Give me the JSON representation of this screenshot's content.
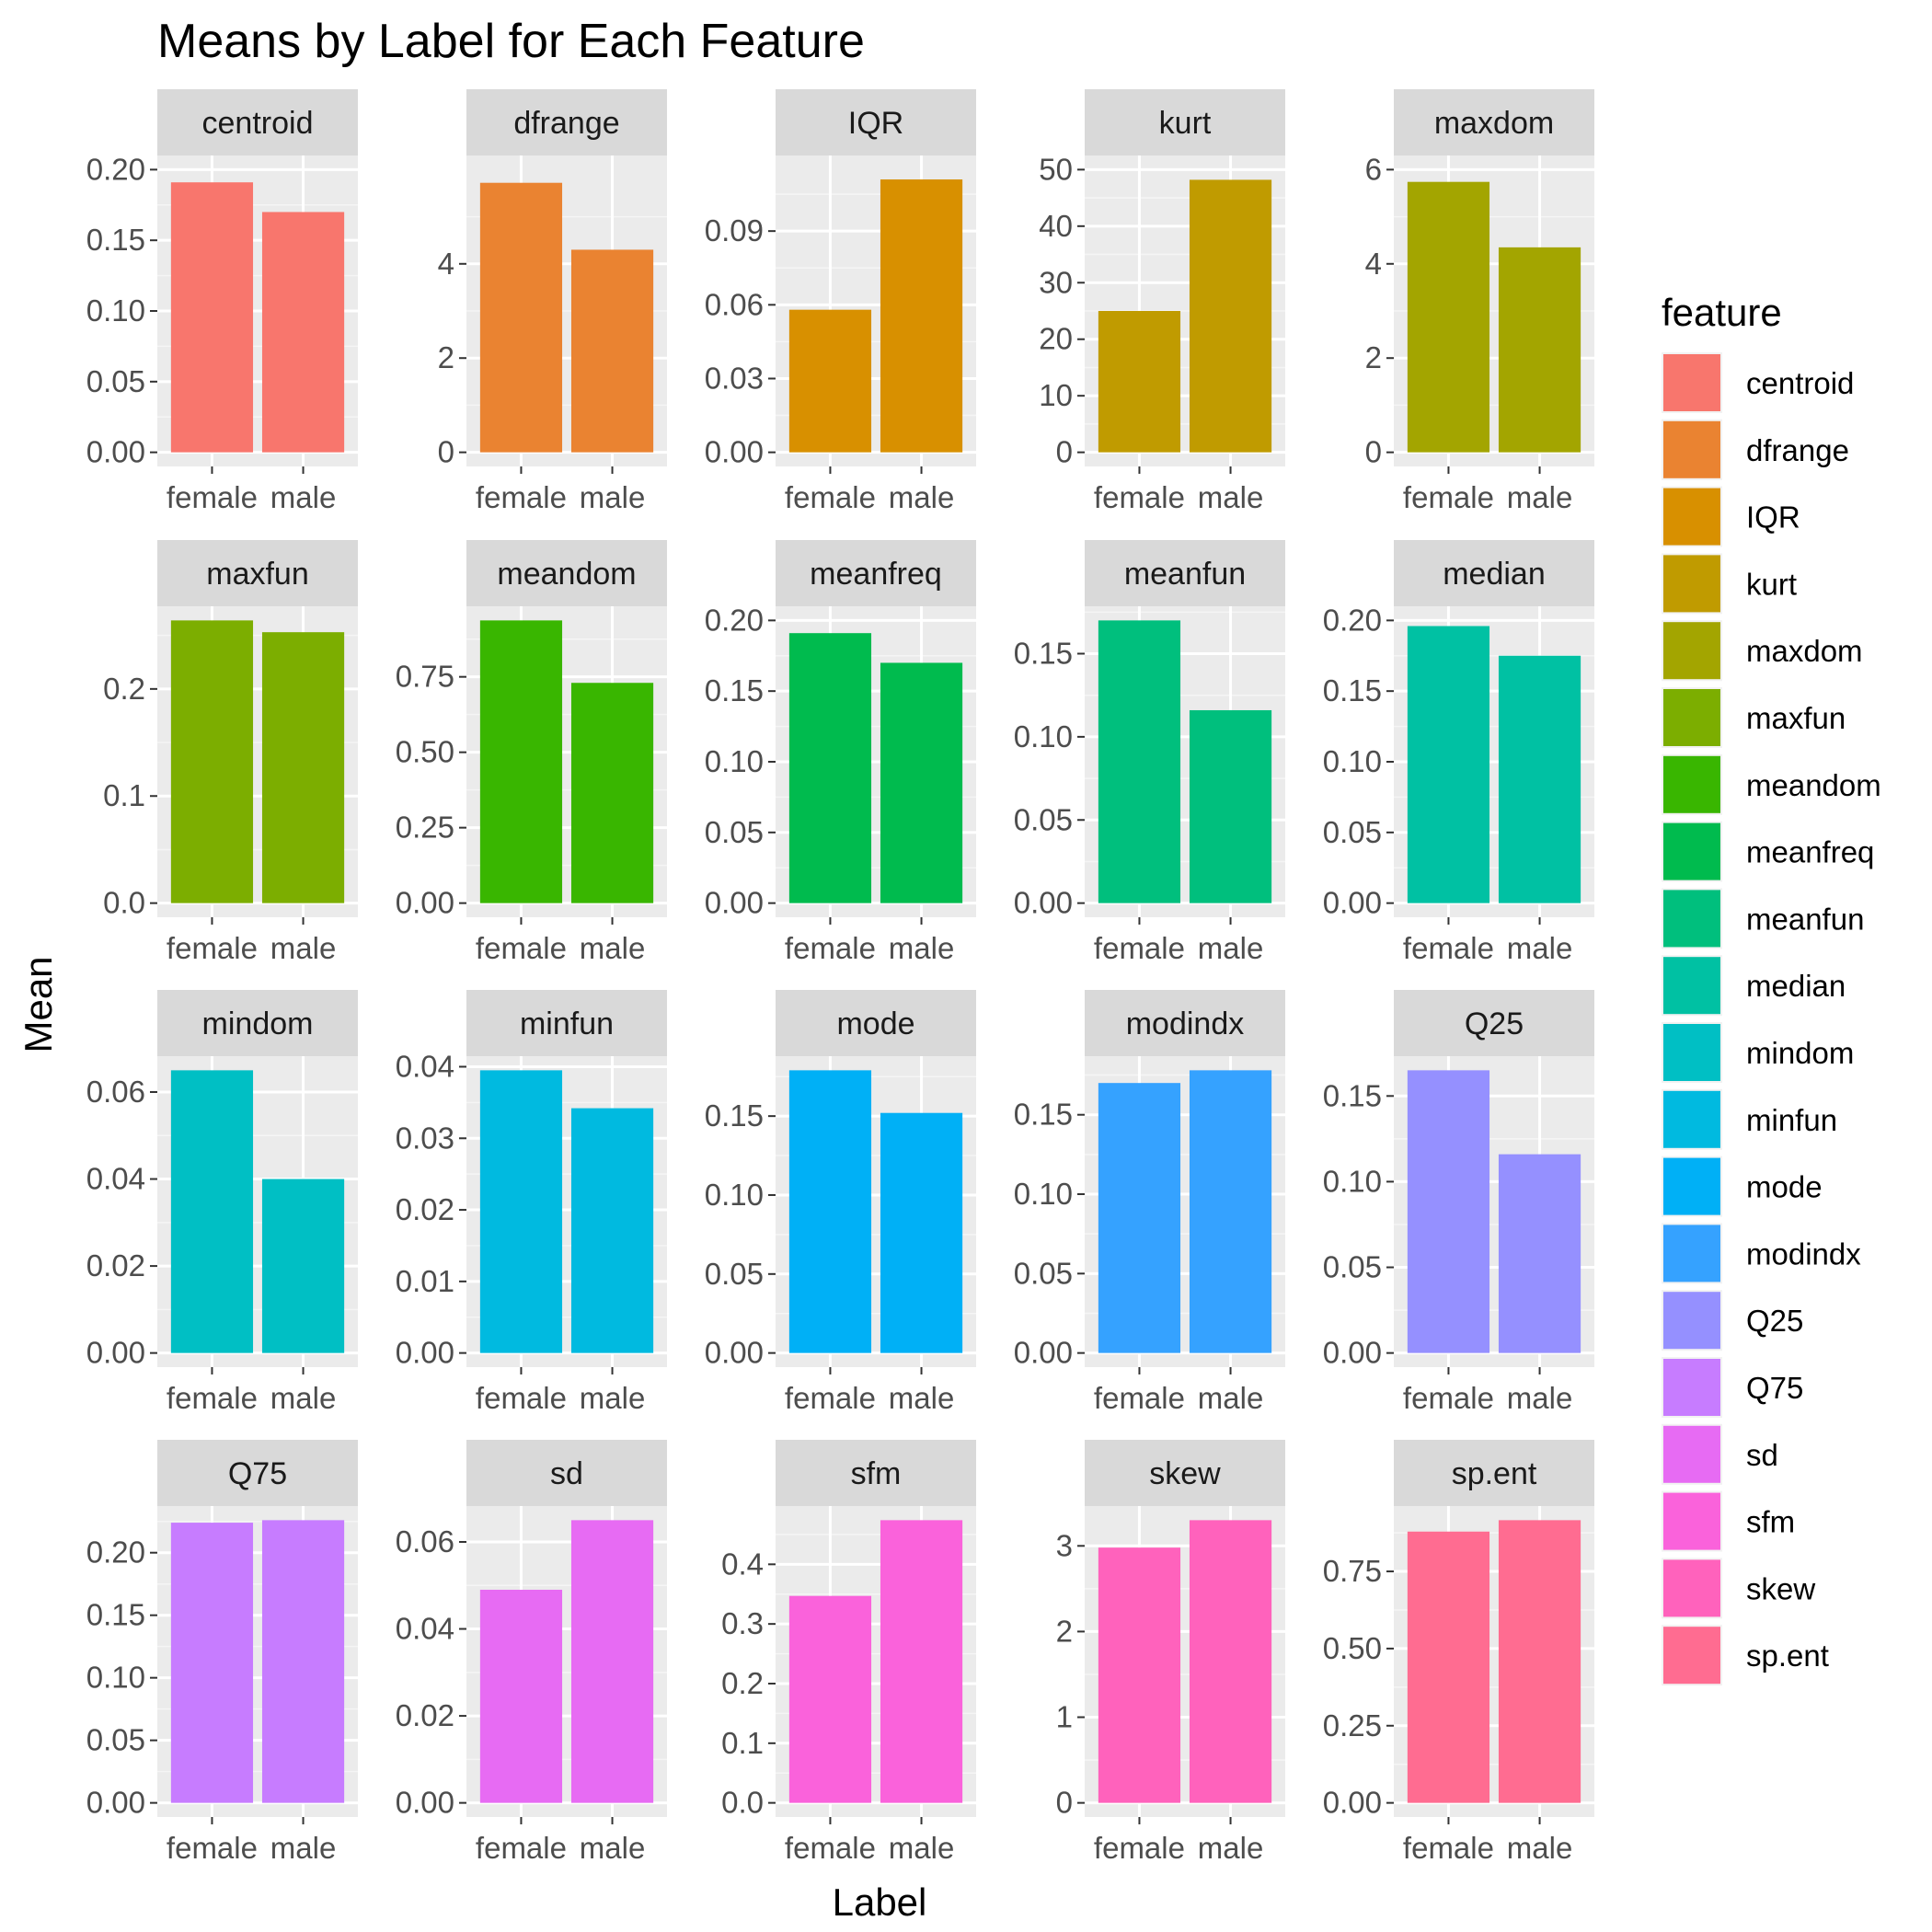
{
  "chart_data": {
    "type": "bar",
    "title": "Means by Label for Each Feature",
    "xlabel": "Label",
    "ylabel": "Mean",
    "categories": [
      "female",
      "male"
    ],
    "legend": {
      "title": "feature",
      "placement": "right"
    },
    "grid": true,
    "facets": [
      {
        "name": "centroid",
        "color": "#F8766D",
        "values": [
          0.191,
          0.17
        ],
        "ylim": [
          0,
          0.2
        ],
        "ticks": [
          "0.00",
          "0.05",
          "0.10",
          "0.15",
          "0.20"
        ]
      },
      {
        "name": "dfrange",
        "color": "#EA8331",
        "values": [
          5.72,
          4.3
        ],
        "ylim": [
          0,
          6
        ],
        "ticks": [
          "0",
          "2",
          "4"
        ]
      },
      {
        "name": "IQR",
        "color": "#D89000",
        "values": [
          0.058,
          0.111
        ],
        "ylim": [
          0,
          0.115
        ],
        "ticks": [
          "0.00",
          "0.03",
          "0.06",
          "0.09"
        ]
      },
      {
        "name": "kurt",
        "color": "#C09B00",
        "values": [
          25.0,
          48.2
        ],
        "ylim": [
          0,
          50
        ],
        "ticks": [
          "0",
          "10",
          "20",
          "30",
          "40",
          "50"
        ]
      },
      {
        "name": "maxdom",
        "color": "#A3A500",
        "values": [
          5.74,
          4.35
        ],
        "ylim": [
          0,
          6
        ],
        "ticks": [
          "0",
          "2",
          "4",
          "6"
        ]
      },
      {
        "name": "maxfun",
        "color": "#7CAE00",
        "values": [
          0.264,
          0.253
        ],
        "ylim": [
          0,
          0.264
        ],
        "ticks": [
          "0.0",
          "0.1",
          "0.2"
        ]
      },
      {
        "name": "meandom",
        "color": "#39B600",
        "values": [
          0.937,
          0.73
        ],
        "ylim": [
          0,
          0.937
        ],
        "ticks": [
          "0.00",
          "0.25",
          "0.50",
          "0.75"
        ]
      },
      {
        "name": "meanfreq",
        "color": "#00BB4E",
        "values": [
          0.191,
          0.17
        ],
        "ylim": [
          0,
          0.2
        ],
        "ticks": [
          "0.00",
          "0.05",
          "0.10",
          "0.15",
          "0.20"
        ]
      },
      {
        "name": "meanfun",
        "color": "#00BF7D",
        "values": [
          0.17,
          0.116
        ],
        "ylim": [
          0,
          0.17
        ],
        "ticks": [
          "0.00",
          "0.05",
          "0.10",
          "0.15"
        ]
      },
      {
        "name": "median",
        "color": "#00C1A3",
        "values": [
          0.196,
          0.175
        ],
        "ylim": [
          0,
          0.2
        ],
        "ticks": [
          "0.00",
          "0.05",
          "0.10",
          "0.15",
          "0.20"
        ]
      },
      {
        "name": "mindom",
        "color": "#00BFC4",
        "values": [
          0.065,
          0.04
        ],
        "ylim": [
          0,
          0.065
        ],
        "ticks": [
          "0.00",
          "0.02",
          "0.04",
          "0.06"
        ]
      },
      {
        "name": "minfun",
        "color": "#00BAE0",
        "values": [
          0.0395,
          0.0342
        ],
        "ylim": [
          0,
          0.0395
        ],
        "ticks": [
          "0.00",
          "0.01",
          "0.02",
          "0.03",
          "0.04"
        ]
      },
      {
        "name": "mode",
        "color": "#00B0F6",
        "values": [
          0.179,
          0.152
        ],
        "ylim": [
          0,
          0.179
        ],
        "ticks": [
          "0.00",
          "0.05",
          "0.10",
          "0.15"
        ]
      },
      {
        "name": "modindx",
        "color": "#35A2FF",
        "values": [
          0.17,
          0.178
        ],
        "ylim": [
          0,
          0.178
        ],
        "ticks": [
          "0.00",
          "0.05",
          "0.10",
          "0.15"
        ]
      },
      {
        "name": "Q25",
        "color": "#9590FF",
        "values": [
          0.165,
          0.116
        ],
        "ylim": [
          0,
          0.165
        ],
        "ticks": [
          "0.00",
          "0.05",
          "0.10",
          "0.15"
        ]
      },
      {
        "name": "Q75",
        "color": "#C77CFF",
        "values": [
          0.224,
          0.226
        ],
        "ylim": [
          0,
          0.226
        ],
        "ticks": [
          "0.00",
          "0.05",
          "0.10",
          "0.15",
          "0.20"
        ]
      },
      {
        "name": "sd",
        "color": "#E76BF3",
        "values": [
          0.049,
          0.065
        ],
        "ylim": [
          0,
          0.065
        ],
        "ticks": [
          "0.00",
          "0.02",
          "0.04",
          "0.06"
        ]
      },
      {
        "name": "sfm",
        "color": "#FA62DB",
        "values": [
          0.347,
          0.474
        ],
        "ylim": [
          0,
          0.474
        ],
        "ticks": [
          "0.0",
          "0.1",
          "0.2",
          "0.3",
          "0.4"
        ]
      },
      {
        "name": "skew",
        "color": "#FF62BC",
        "values": [
          2.98,
          3.3
        ],
        "ylim": [
          0,
          3.3
        ],
        "ticks": [
          "0",
          "1",
          "2",
          "3"
        ]
      },
      {
        "name": "sp.ent",
        "color": "#FF6C91",
        "values": [
          0.879,
          0.916
        ],
        "ylim": [
          0,
          0.916
        ],
        "ticks": [
          "0.00",
          "0.25",
          "0.50",
          "0.75"
        ]
      }
    ]
  }
}
